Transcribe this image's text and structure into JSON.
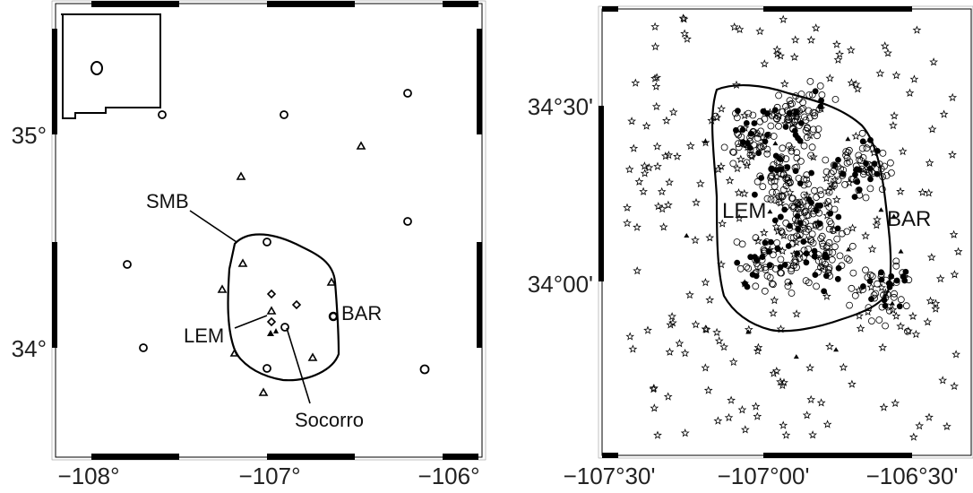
{
  "left_map": {
    "x_ticks": [
      "−108°",
      "−107°",
      "−106°"
    ],
    "y_ticks": [
      "35°",
      "34°"
    ],
    "labels": {
      "smb": "SMB",
      "lem": "LEM",
      "bar": "BAR",
      "socorro": "Socorro"
    },
    "symbols": [
      "open-circle",
      "open-triangle",
      "open-diamond",
      "filled-triangle"
    ]
  },
  "right_map": {
    "x_ticks": [
      "−107°30'",
      "−107°00'",
      "−106°30'"
    ],
    "y_ticks": [
      "34°30'",
      "34°00'"
    ],
    "labels": {
      "lem": "LEM",
      "bar": "BAR"
    },
    "symbols": [
      "star",
      "open-circle",
      "filled-circle",
      "open-pentagon",
      "filled-triangle"
    ]
  }
}
